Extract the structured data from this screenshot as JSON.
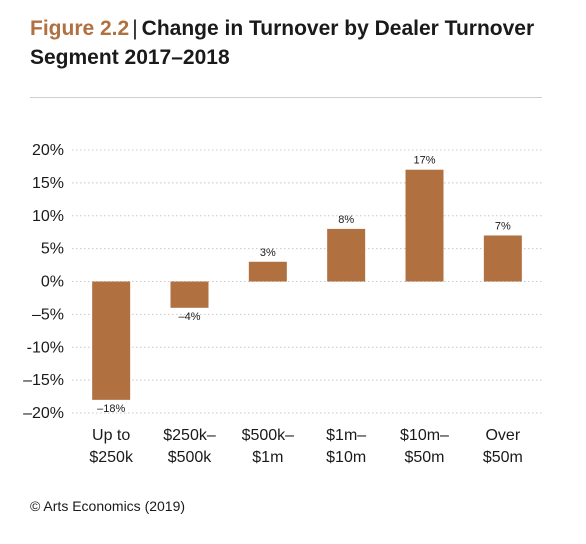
{
  "header": {
    "figure_label": "Figure 2.2",
    "separator": "|",
    "title_line1": "Change in Turnover by Dealer Turnover",
    "title_line2": "Segment 2017–2018"
  },
  "source": "© Arts Economics (2019)",
  "colors": {
    "bar": "#b07040",
    "figure_label": "#b07040",
    "grid": "#c8c8c8"
  },
  "chart_data": {
    "type": "bar",
    "title": "Change in Turnover by Dealer Turnover Segment 2017–2018",
    "categories": [
      [
        "Up to",
        "$250k"
      ],
      [
        "$250k–",
        "$500k"
      ],
      [
        "$500k–",
        "$1m"
      ],
      [
        "$1m–",
        "$10m"
      ],
      [
        "$10m–",
        "$50m"
      ],
      [
        "Over",
        "$50m"
      ]
    ],
    "values": [
      -18,
      -4,
      3,
      8,
      17,
      7
    ],
    "value_labels": [
      "–18%",
      "–4%",
      "3%",
      "8%",
      "17%",
      "7%"
    ],
    "ylim": [
      -20,
      20
    ],
    "yticks": [
      20,
      15,
      10,
      5,
      0,
      -5,
      -10,
      -15,
      -20
    ],
    "ytick_labels": [
      "20%",
      "15%",
      "10%",
      "5%",
      "0%",
      "–5%",
      "-10%",
      "–15%",
      "–20%"
    ],
    "grid": true,
    "grid_style": "dotted",
    "legend": false
  }
}
